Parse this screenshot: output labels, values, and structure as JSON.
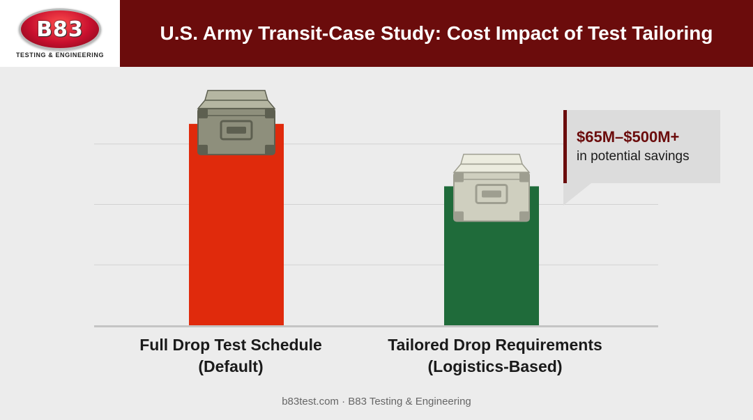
{
  "header": {
    "logo_text": "B83",
    "logo_subtitle": "TESTING & ENGINEERING",
    "title": "U.S. Army Transit-Case Study: Cost Impact of Test Tailoring"
  },
  "chart_data": {
    "type": "bar",
    "categories": [
      "Full Drop Test Schedule (Default)",
      "Tailored Drop Requirements (Logistics-Based)"
    ],
    "category_lines": [
      [
        "Full Drop Test Schedule",
        "(Default)"
      ],
      [
        "Tailored Drop Requirements",
        "(Logistics-Based)"
      ]
    ],
    "values": [
      100,
      69
    ],
    "ylim": [
      0,
      120
    ],
    "grid": true,
    "title": "",
    "xlabel": "",
    "ylabel": ""
  },
  "colors": {
    "default_bar": "#e02a0c",
    "tailored_bar": "#1f6b3a",
    "title_bar": "#6b0c0c",
    "crate_default": "#8e8f7c",
    "crate_tailored": "#cfcfbf"
  },
  "icons": [
    "military-crate-icon",
    "light-crate-icon"
  ],
  "callout": {
    "value": "$65M–$500M+",
    "description": "in potential savings"
  },
  "footer": {
    "text": "b83test.com · B83 Testing & Engineering"
  }
}
